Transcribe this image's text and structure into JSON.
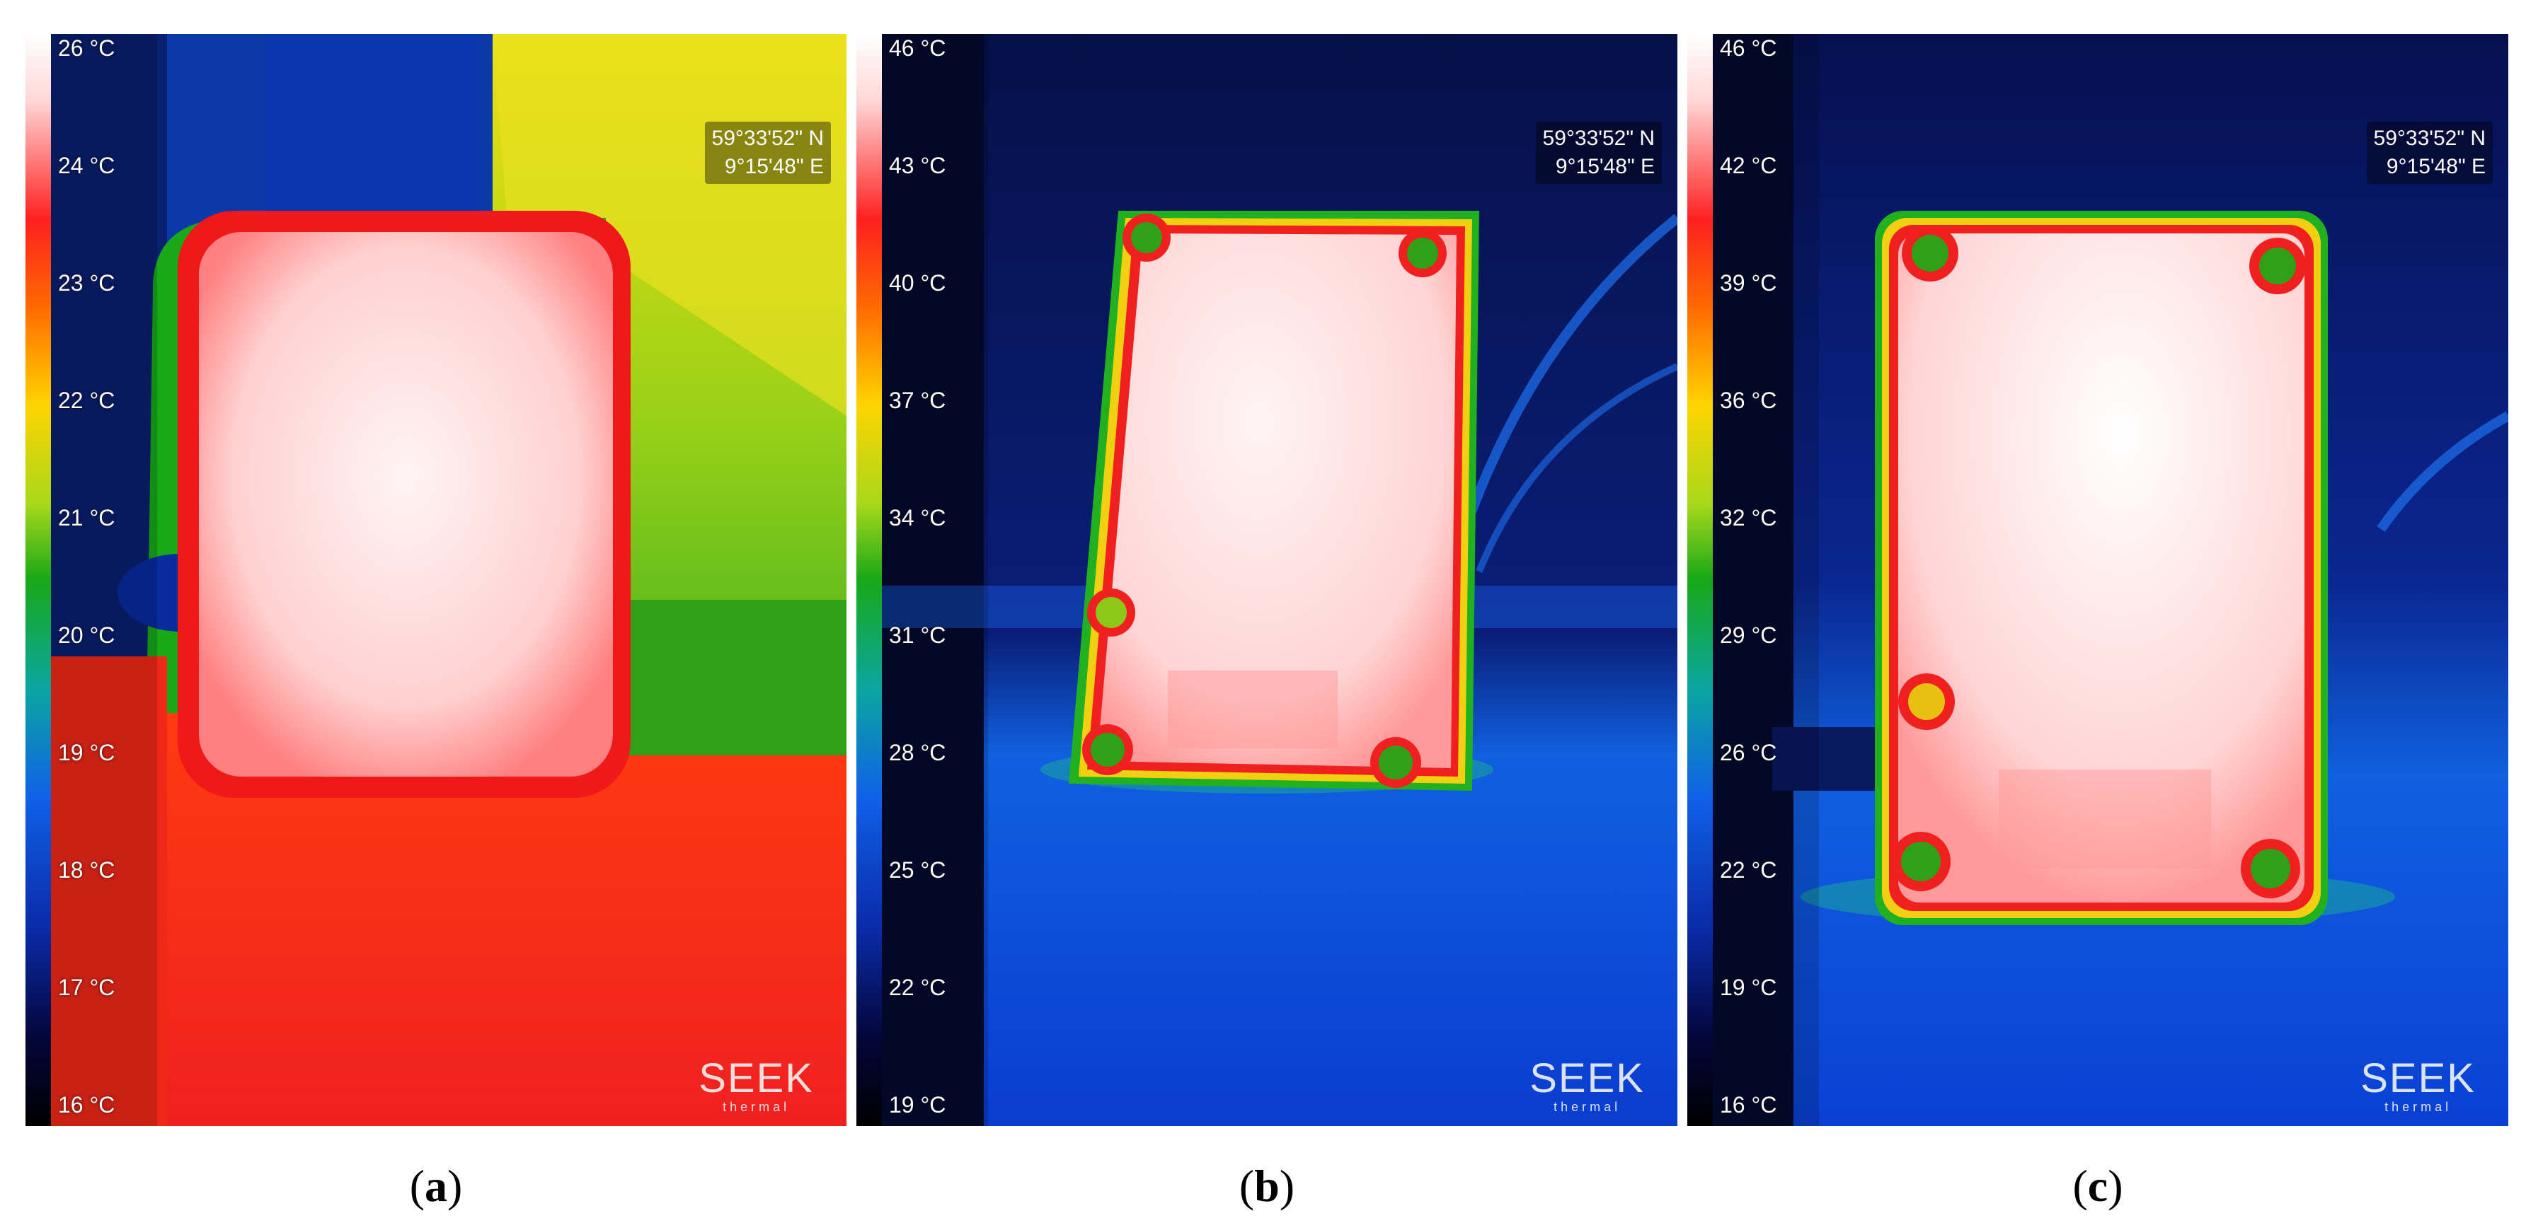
{
  "panels": [
    {
      "id": "a",
      "caption": "a",
      "scale_ticks": [
        "26 °C",
        "24 °C",
        "23 °C",
        "22 °C",
        "21 °C",
        "20 °C",
        "19 °C",
        "18 °C",
        "17 °C",
        "16 °C"
      ],
      "gps": {
        "lat": "59°33'52\" N",
        "lon": "9°15'48\" E"
      },
      "brand": {
        "name": "SEEK",
        "sub": "thermal"
      }
    },
    {
      "id": "b",
      "caption": "b",
      "scale_ticks": [
        "46 °C",
        "43 °C",
        "40 °C",
        "37 °C",
        "34 °C",
        "31 °C",
        "28 °C",
        "25 °C",
        "22 °C",
        "19 °C"
      ],
      "gps": {
        "lat": "59°33'52\" N",
        "lon": "9°15'48\" E"
      },
      "brand": {
        "name": "SEEK",
        "sub": "thermal"
      }
    },
    {
      "id": "c",
      "caption": "c",
      "scale_ticks": [
        "46 °C",
        "42 °C",
        "39 °C",
        "36 °C",
        "32 °C",
        "29 °C",
        "26 °C",
        "22 °C",
        "19 °C",
        "16 °C"
      ],
      "gps": {
        "lat": "59°33'52\" N",
        "lon": "9°15'48\" E"
      },
      "brand": {
        "name": "SEEK",
        "sub": "thermal"
      }
    }
  ]
}
